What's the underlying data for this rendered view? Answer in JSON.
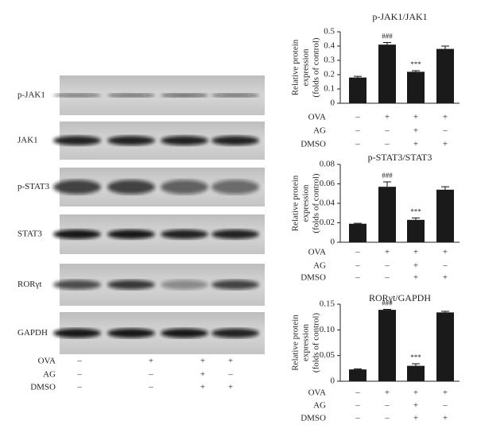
{
  "blot": {
    "rows": [
      "p-JAK1",
      "JAK1",
      "p-STAT3",
      "STAT3",
      "RORγt",
      "GAPDH"
    ],
    "treatments": [
      {
        "name": "OVA",
        "signs": [
          "–",
          "+",
          "+",
          "+"
        ]
      },
      {
        "name": "AG",
        "signs": [
          "–",
          "–",
          "+",
          "–"
        ]
      },
      {
        "name": "DMSO",
        "signs": [
          "–",
          "–",
          "+",
          "+"
        ]
      }
    ]
  },
  "chart_data": [
    {
      "type": "bar",
      "title": "p-JAK1/JAK1",
      "ylabel": [
        "Relative protein",
        "expression",
        "(folds of control)"
      ],
      "values": [
        0.18,
        0.41,
        0.22,
        0.38
      ],
      "errors": [
        0.008,
        0.015,
        0.008,
        0.02
      ],
      "annotations": [
        null,
        "###",
        "***",
        null
      ],
      "color": "#1a1a1a",
      "ylim": [
        0,
        0.5
      ],
      "yticks": [
        0,
        0.1,
        0.2,
        0.3,
        0.4,
        0.5
      ],
      "treatments": [
        {
          "name": "OVA",
          "signs": [
            "–",
            "+",
            "+",
            "+"
          ]
        },
        {
          "name": "AG",
          "signs": [
            "–",
            "–",
            "+",
            "–"
          ]
        },
        {
          "name": "DMSO",
          "signs": [
            "–",
            "–",
            "+",
            "+"
          ]
        }
      ]
    },
    {
      "type": "bar",
      "title": "p-STAT3/STAT3",
      "ylabel": [
        "Relative protein",
        "expression",
        "(folds of control)"
      ],
      "values": [
        0.019,
        0.057,
        0.023,
        0.054
      ],
      "errors": [
        0.0005,
        0.005,
        0.002,
        0.003
      ],
      "annotations": [
        null,
        "###",
        "***",
        null
      ],
      "color": "#1a1a1a",
      "ylim": [
        0,
        0.08
      ],
      "yticks": [
        0,
        0.02,
        0.04,
        0.06,
        0.08
      ],
      "treatments": [
        {
          "name": "OVA",
          "signs": [
            "–",
            "+",
            "+",
            "+"
          ]
        },
        {
          "name": "AG",
          "signs": [
            "–",
            "–",
            "+",
            "–"
          ]
        },
        {
          "name": "DMSO",
          "signs": [
            "–",
            "–",
            "+",
            "+"
          ]
        }
      ]
    },
    {
      "type": "bar",
      "title": "RORγt/GAPDH",
      "ylabel": [
        "Relative protein",
        "expression",
        "(folds of control)"
      ],
      "values": [
        0.023,
        0.139,
        0.03,
        0.134
      ],
      "errors": [
        0.001,
        0.001,
        0.004,
        0.002
      ],
      "annotations": [
        null,
        "###",
        "***",
        null
      ],
      "color": "#1a1a1a",
      "ylim": [
        0,
        0.15
      ],
      "yticks": [
        0,
        0.05,
        {
          "value": 0.1,
          "label": "0.10"
        },
        0.15
      ],
      "treatments": [
        {
          "name": "OVA",
          "signs": [
            "–",
            "+",
            "+",
            "+"
          ]
        },
        {
          "name": "AG",
          "signs": [
            "–",
            "–",
            "+",
            "–"
          ]
        },
        {
          "name": "DMSO",
          "signs": [
            "–",
            "–",
            "+",
            "+"
          ]
        }
      ]
    }
  ]
}
